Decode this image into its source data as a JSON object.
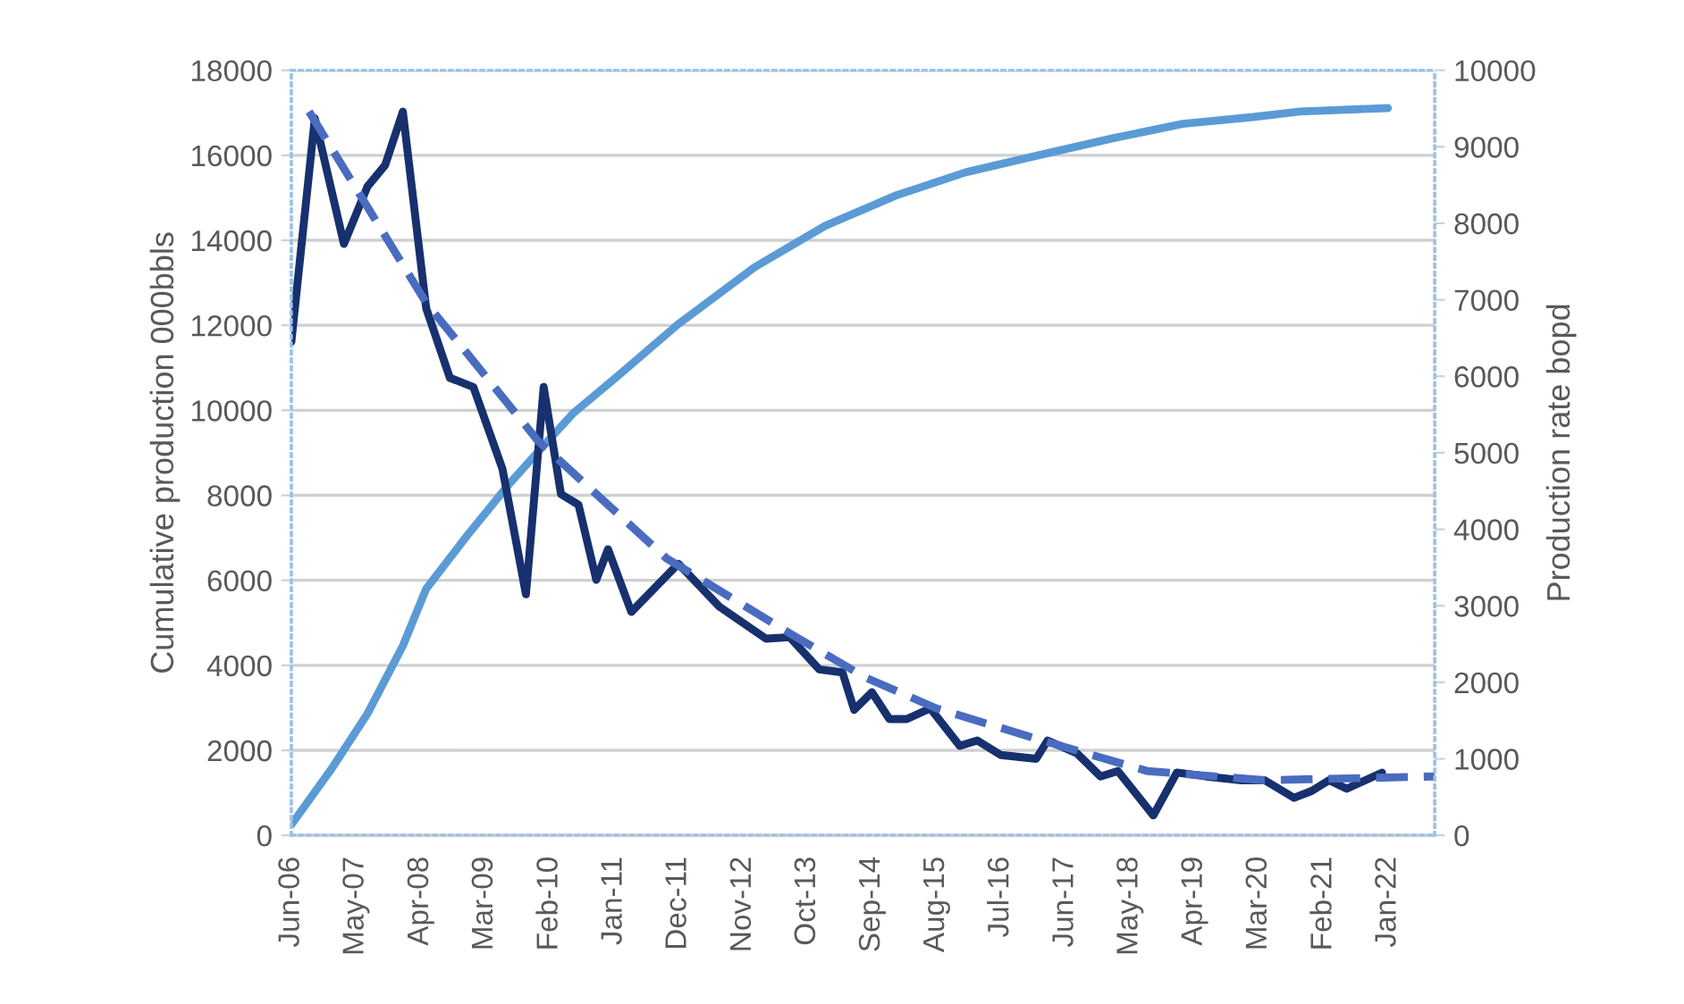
{
  "chart_data": {
    "type": "line",
    "ylabel": "Cumulative production 000bbls",
    "y2label": "Production rate bopd",
    "xlim": [
      "2006-06",
      "2022-09"
    ],
    "xticks": [
      {
        "value": "2006-06",
        "label": "Jun-06"
      },
      {
        "value": "2007-05",
        "label": "May-07"
      },
      {
        "value": "2008-04",
        "label": "Apr-08"
      },
      {
        "value": "2009-03",
        "label": "Mar-09"
      },
      {
        "value": "2010-02",
        "label": "Feb-10"
      },
      {
        "value": "2011-01",
        "label": "Jan-11"
      },
      {
        "value": "2011-12",
        "label": "Dec-11"
      },
      {
        "value": "2012-11",
        "label": "Nov-12"
      },
      {
        "value": "2013-10",
        "label": "Oct-13"
      },
      {
        "value": "2014-09",
        "label": "Sep-14"
      },
      {
        "value": "2015-08",
        "label": "Aug-15"
      },
      {
        "value": "2016-07",
        "label": "Jul-16"
      },
      {
        "value": "2017-06",
        "label": "Jun-17"
      },
      {
        "value": "2018-05",
        "label": "May-18"
      },
      {
        "value": "2019-04",
        "label": "Apr-19"
      },
      {
        "value": "2020-03",
        "label": "Mar-20"
      },
      {
        "value": "2021-02",
        "label": "Feb-21"
      },
      {
        "value": "2022-01",
        "label": "Jan-22"
      }
    ],
    "ylim": [
      0,
      18000
    ],
    "yticks": [
      0,
      2000,
      4000,
      6000,
      8000,
      10000,
      12000,
      14000,
      16000,
      18000
    ],
    "y2lim": [
      0,
      10000
    ],
    "y2ticks": [
      0,
      1000,
      2000,
      3000,
      4000,
      5000,
      6000,
      7000,
      8000,
      9000,
      10000
    ],
    "grid": "y",
    "legend": false,
    "series": [
      {
        "color": "#5b9bd5",
        "line_style": "solid",
        "x": [
          "2006-06",
          "2007-01",
          "2007-07",
          "2008-01",
          "2008-05",
          "2008-12",
          "2009-07",
          "2010-01",
          "2010-06",
          "2011-02",
          "2011-12",
          "2013-01",
          "2014-01",
          "2015-01",
          "2016-01",
          "2017-02",
          "2018-02",
          "2019-02",
          "2020-02",
          "2020-10",
          "2022-01"
        ],
        "values": [
          250,
          1600,
          2860,
          4460,
          5800,
          7060,
          8240,
          9170,
          9920,
          10850,
          12030,
          13370,
          14340,
          15050,
          15600,
          16020,
          16400,
          16740,
          16900,
          17030,
          17110
        ]
      },
      {
        "color": "#17306e",
        "line_style": "solid",
        "axis": "y2",
        "x": [
          "2006-06",
          "2006-10",
          "2007-03",
          "2007-07",
          "2007-10",
          "2008-01",
          "2008-05",
          "2008-09",
          "2009-01",
          "2009-06",
          "2009-10",
          "2010-01",
          "2010-04",
          "2010-07",
          "2010-10",
          "2010-12",
          "2011-04",
          "2011-12",
          "2012-07",
          "2013-03",
          "2013-07",
          "2013-12",
          "2014-04",
          "2014-06",
          "2014-09",
          "2014-12",
          "2015-03",
          "2015-07",
          "2015-12",
          "2016-03",
          "2016-07",
          "2017-01",
          "2017-03",
          "2017-08",
          "2017-12",
          "2018-03",
          "2018-09",
          "2019-01",
          "2019-06",
          "2019-12",
          "2020-04",
          "2020-09",
          "2020-12",
          "2021-03",
          "2021-06",
          "2021-12"
        ],
        "values": [
          6450,
          9370,
          7730,
          8480,
          8760,
          9460,
          6890,
          5980,
          5860,
          4790,
          3150,
          5860,
          4460,
          4320,
          3340,
          3740,
          2920,
          3550,
          2990,
          2570,
          2590,
          2170,
          2130,
          1640,
          1870,
          1520,
          1520,
          1660,
          1170,
          1240,
          1050,
          1000,
          1240,
          1070,
          770,
          840,
          260,
          820,
          770,
          720,
          720,
          490,
          580,
          720,
          610,
          820
        ]
      },
      {
        "color": "#4a6cc0",
        "line_style": "dashed",
        "axis": "y2",
        "x": [
          "2006-09",
          "2008-05",
          "2009-12",
          "2011-10",
          "2013-07",
          "2014-08",
          "2015-08",
          "2017-02",
          "2018-08",
          "2020-04",
          "2022-09"
        ],
        "values": [
          9460,
          6960,
          5160,
          3620,
          2640,
          2060,
          1660,
          1240,
          840,
          720,
          770
        ]
      }
    ]
  }
}
